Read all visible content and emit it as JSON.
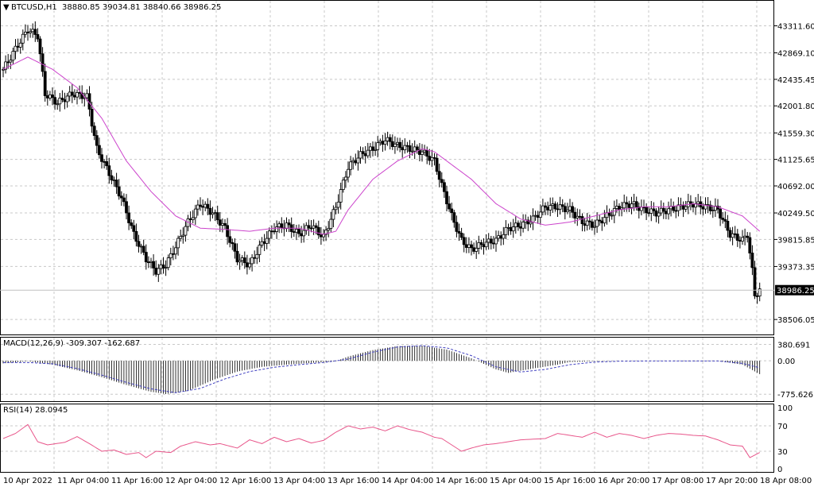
{
  "header": {
    "symbol": "BTCUSD,H1",
    "ohlc": "38880.85 39034.81 38840.66 38986.25"
  },
  "colors": {
    "background": "#ffffff",
    "grid": "#c8c8c8",
    "candle": "#000000",
    "ma": "#cc44cc",
    "rsi": "#e8558a",
    "macd_signal": "#4040c0"
  },
  "chart_data": [
    {
      "type": "candlestick",
      "ylim": [
        38300,
        43500
      ],
      "y_ticks": [
        "43311.60",
        "42869.10",
        "42435.45",
        "42001.80",
        "41559.30",
        "41125.65",
        "40692.00",
        "40249.50",
        "39815.85",
        "39373.35",
        "38506.05"
      ],
      "current_price_label": "38986.25",
      "series": [
        {
          "name": "price",
          "anchors": [
            [
              0,
              42600
            ],
            [
              6,
              43000
            ],
            [
              10,
              43250
            ],
            [
              14,
              43150
            ],
            [
              17,
              42200
            ],
            [
              22,
              42050
            ],
            [
              28,
              42200
            ],
            [
              34,
              42150
            ],
            [
              38,
              41300
            ],
            [
              43,
              40900
            ],
            [
              48,
              40500
            ],
            [
              53,
              39900
            ],
            [
              58,
              39500
            ],
            [
              62,
              39300
            ],
            [
              66,
              39400
            ],
            [
              70,
              39700
            ],
            [
              75,
              40100
            ],
            [
              80,
              40400
            ],
            [
              85,
              40250
            ],
            [
              90,
              40000
            ],
            [
              95,
              39500
            ],
            [
              100,
              39400
            ],
            [
              105,
              39750
            ],
            [
              110,
              40000
            ],
            [
              115,
              40050
            ],
            [
              120,
              39900
            ],
            [
              125,
              40050
            ],
            [
              130,
              39850
            ],
            [
              135,
              40350
            ],
            [
              140,
              41000
            ],
            [
              145,
              41200
            ],
            [
              150,
              41300
            ],
            [
              155,
              41450
            ],
            [
              160,
              41350
            ],
            [
              165,
              41300
            ],
            [
              170,
              41250
            ],
            [
              175,
              41100
            ],
            [
              178,
              40700
            ],
            [
              182,
              40200
            ],
            [
              186,
              39800
            ],
            [
              190,
              39650
            ],
            [
              195,
              39750
            ],
            [
              200,
              39800
            ],
            [
              205,
              40000
            ],
            [
              210,
              40050
            ],
            [
              215,
              40150
            ],
            [
              220,
              40350
            ],
            [
              225,
              40350
            ],
            [
              230,
              40300
            ],
            [
              235,
              40100
            ],
            [
              240,
              40050
            ],
            [
              245,
              40200
            ],
            [
              250,
              40350
            ],
            [
              255,
              40400
            ],
            [
              260,
              40300
            ],
            [
              265,
              40250
            ],
            [
              270,
              40300
            ],
            [
              275,
              40350
            ],
            [
              280,
              40400
            ],
            [
              285,
              40350
            ],
            [
              290,
              40300
            ],
            [
              295,
              39900
            ],
            [
              300,
              39800
            ],
            [
              302,
              39900
            ],
            [
              304,
              39300
            ],
            [
              305,
              38900
            ],
            [
              307,
              38986
            ]
          ]
        },
        {
          "name": "ma",
          "anchors": [
            [
              0,
              42600
            ],
            [
              10,
              42800
            ],
            [
              20,
              42600
            ],
            [
              30,
              42300
            ],
            [
              40,
              41800
            ],
            [
              50,
              41100
            ],
            [
              60,
              40600
            ],
            [
              70,
              40200
            ],
            [
              80,
              40000
            ],
            [
              90,
              39980
            ],
            [
              100,
              39950
            ],
            [
              110,
              40000
            ],
            [
              120,
              40000
            ],
            [
              130,
              39900
            ],
            [
              135,
              39950
            ],
            [
              140,
              40300
            ],
            [
              150,
              40800
            ],
            [
              160,
              41100
            ],
            [
              170,
              41300
            ],
            [
              175,
              41250
            ],
            [
              180,
              41100
            ],
            [
              190,
              40800
            ],
            [
              200,
              40400
            ],
            [
              210,
              40150
            ],
            [
              220,
              40050
            ],
            [
              230,
              40100
            ],
            [
              240,
              40200
            ],
            [
              250,
              40300
            ],
            [
              260,
              40350
            ],
            [
              270,
              40350
            ],
            [
              280,
              40400
            ],
            [
              290,
              40350
            ],
            [
              300,
              40200
            ],
            [
              307,
              39950
            ]
          ]
        }
      ]
    },
    {
      "type": "histogram",
      "label": "MACD(12,26,9) -309.307 -162.687",
      "ylim": [
        -900,
        500
      ],
      "y_ticks": [
        "380.691",
        "0.00",
        "-775.626"
      ],
      "series": [
        {
          "name": "macd",
          "anchors": [
            [
              0,
              -60
            ],
            [
              10,
              -10
            ],
            [
              20,
              -90
            ],
            [
              30,
              -220
            ],
            [
              40,
              -380
            ],
            [
              50,
              -560
            ],
            [
              60,
              -720
            ],
            [
              66,
              -770
            ],
            [
              75,
              -700
            ],
            [
              85,
              -450
            ],
            [
              95,
              -250
            ],
            [
              105,
              -140
            ],
            [
              115,
              -90
            ],
            [
              125,
              -50
            ],
            [
              135,
              -10
            ],
            [
              140,
              100
            ],
            [
              150,
              250
            ],
            [
              160,
              340
            ],
            [
              170,
              350
            ],
            [
              180,
              260
            ],
            [
              190,
              60
            ],
            [
              200,
              -200
            ],
            [
              205,
              -280
            ],
            [
              215,
              -180
            ],
            [
              225,
              -90
            ],
            [
              230,
              -30
            ],
            [
              240,
              -10
            ],
            [
              250,
              0
            ],
            [
              260,
              0
            ],
            [
              270,
              0
            ],
            [
              280,
              -10
            ],
            [
              290,
              0
            ],
            [
              300,
              -90
            ],
            [
              307,
              -309
            ]
          ]
        },
        {
          "name": "signal",
          "anchors": [
            [
              0,
              -40
            ],
            [
              10,
              -40
            ],
            [
              20,
              -70
            ],
            [
              30,
              -180
            ],
            [
              40,
              -330
            ],
            [
              50,
              -500
            ],
            [
              60,
              -650
            ],
            [
              70,
              -740
            ],
            [
              80,
              -640
            ],
            [
              90,
              -420
            ],
            [
              100,
              -250
            ],
            [
              110,
              -150
            ],
            [
              120,
              -90
            ],
            [
              130,
              -40
            ],
            [
              140,
              40
            ],
            [
              150,
              200
            ],
            [
              160,
              320
            ],
            [
              170,
              350
            ],
            [
              180,
              300
            ],
            [
              190,
              120
            ],
            [
              200,
              -140
            ],
            [
              210,
              -260
            ],
            [
              220,
              -200
            ],
            [
              230,
              -90
            ],
            [
              240,
              -30
            ],
            [
              250,
              -10
            ],
            [
              260,
              -5
            ],
            [
              270,
              -5
            ],
            [
              280,
              -5
            ],
            [
              290,
              -5
            ],
            [
              300,
              -60
            ],
            [
              307,
              -162
            ]
          ]
        }
      ]
    },
    {
      "type": "line",
      "label": "RSI(14) 28.0945",
      "ylim": [
        0,
        100
      ],
      "y_ticks": [
        "100",
        "70",
        "30",
        "0"
      ],
      "y_tick_values": [
        100,
        70,
        30,
        0
      ],
      "series": [
        {
          "name": "rsi",
          "anchors": [
            [
              0,
              50
            ],
            [
              5,
              58
            ],
            [
              10,
              72
            ],
            [
              14,
              45
            ],
            [
              18,
              40
            ],
            [
              25,
              44
            ],
            [
              30,
              53
            ],
            [
              35,
              42
            ],
            [
              40,
              30
            ],
            [
              45,
              32
            ],
            [
              50,
              25
            ],
            [
              55,
              28
            ],
            [
              58,
              20
            ],
            [
              62,
              30
            ],
            [
              68,
              28
            ],
            [
              72,
              38
            ],
            [
              78,
              45
            ],
            [
              84,
              40
            ],
            [
              88,
              42
            ],
            [
              95,
              35
            ],
            [
              100,
              48
            ],
            [
              105,
              42
            ],
            [
              110,
              52
            ],
            [
              115,
              45
            ],
            [
              120,
              50
            ],
            [
              125,
              43
            ],
            [
              130,
              47
            ],
            [
              135,
              60
            ],
            [
              140,
              70
            ],
            [
              145,
              65
            ],
            [
              150,
              68
            ],
            [
              155,
              62
            ],
            [
              160,
              70
            ],
            [
              165,
              64
            ],
            [
              170,
              60
            ],
            [
              175,
              52
            ],
            [
              178,
              50
            ],
            [
              182,
              40
            ],
            [
              186,
              30
            ],
            [
              190,
              35
            ],
            [
              195,
              40
            ],
            [
              200,
              42
            ],
            [
              210,
              48
            ],
            [
              220,
              50
            ],
            [
              225,
              58
            ],
            [
              230,
              55
            ],
            [
              235,
              52
            ],
            [
              240,
              60
            ],
            [
              245,
              52
            ],
            [
              250,
              58
            ],
            [
              255,
              55
            ],
            [
              260,
              50
            ],
            [
              265,
              55
            ],
            [
              270,
              58
            ],
            [
              275,
              57
            ],
            [
              280,
              55
            ],
            [
              285,
              54
            ],
            [
              290,
              48
            ],
            [
              295,
              40
            ],
            [
              300,
              38
            ],
            [
              303,
              20
            ],
            [
              307,
              28
            ]
          ]
        }
      ]
    }
  ],
  "x_axis": {
    "labels": [
      "10 Apr 2022",
      "11 Apr 04:00",
      "11 Apr 16:00",
      "12 Apr 04:00",
      "12 Apr 16:00",
      "13 Apr 04:00",
      "13 Apr 16:00",
      "14 Apr 04:00",
      "14 Apr 16:00",
      "15 Apr 04:00",
      "15 Apr 16:00",
      "16 Apr 20:00",
      "17 Apr 08:00",
      "17 Apr 20:00",
      "18 Apr 08:00"
    ]
  }
}
